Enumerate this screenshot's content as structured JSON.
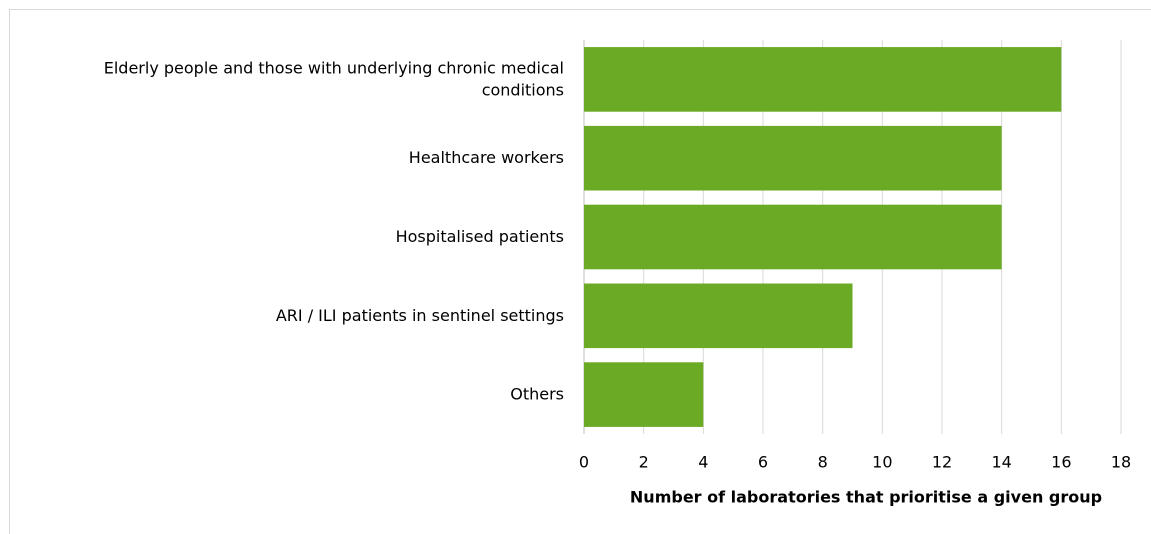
{
  "chart_data": {
    "type": "bar",
    "orientation": "horizontal",
    "categories": [
      "Elderly people and those with underlying chronic medical conditions",
      "Healthcare workers",
      "Hospitalised patients",
      "ARI / ILI patients in sentinel settings",
      "Others"
    ],
    "values": [
      16,
      14,
      14,
      9,
      4
    ],
    "color": "#6aaa24",
    "xlabel": "Number of laboratories that prioritise a given group",
    "xlim": [
      0,
      18
    ],
    "xticks": [
      0,
      2,
      4,
      6,
      8,
      10,
      12,
      14,
      16,
      18
    ],
    "grid": true
  }
}
